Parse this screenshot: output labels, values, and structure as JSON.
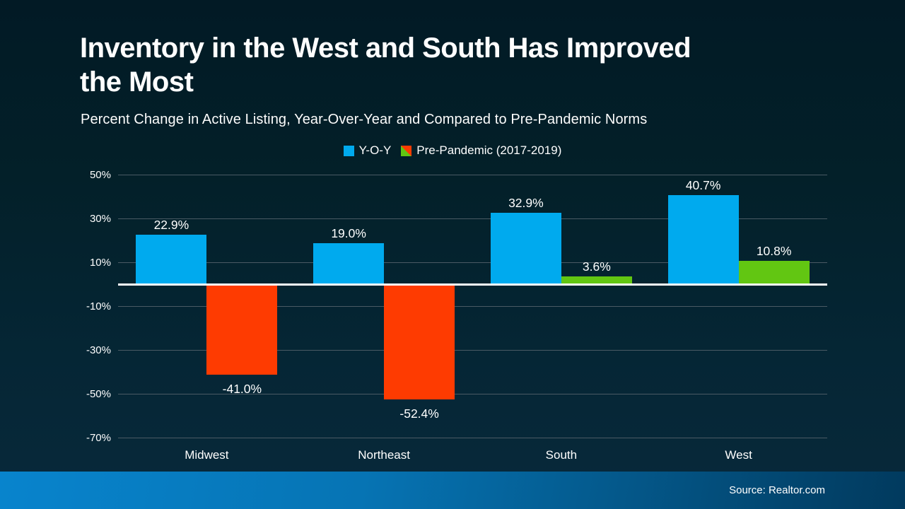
{
  "slide": {
    "title_line1": "Inventory in the West and South Has Improved",
    "title_line2": "the Most",
    "subtitle": "Percent Change in Active Listing, Year-Over-Year and Compared to Pre-Pandemic Norms",
    "footer_source": "Source: Realtor.com"
  },
  "legend": [
    {
      "label": "Y-O-Y",
      "swatch": "yoy-swatch"
    },
    {
      "label": "Pre-Pandemic (2017-2019)",
      "swatch": "prepandemic-swatch"
    }
  ],
  "colors": {
    "yoy_blue": "#00aaee",
    "prepandemic_negative_orange": "#fe3b01",
    "prepandemic_positive_green": "#62c612",
    "gridline_gray": "#4a5a64",
    "zero_line_white": "#ffffff",
    "background_top": "#021a25",
    "background_bottom": "#08293b",
    "footer_left_blue": "#0884cd",
    "footer_right_blue": "#013a5e"
  },
  "chart_data": {
    "type": "bar",
    "title": "Inventory in the West and South Has Improved the Most",
    "subtitle": "Percent Change in Active Listing, Year-Over-Year and Compared to Pre-Pandemic Norms",
    "categories": [
      "Midwest",
      "Northeast",
      "South",
      "West"
    ],
    "series": [
      {
        "name": "Y-O-Y",
        "values": [
          22.9,
          19.0,
          32.9,
          40.7
        ]
      },
      {
        "name": "Pre-Pandemic (2017-2019)",
        "values": [
          -41.0,
          -52.4,
          3.6,
          10.8
        ]
      }
    ],
    "value_labels": [
      [
        "22.9%",
        "-41.0%"
      ],
      [
        "19.0%",
        "-52.4%"
      ],
      [
        "32.9%",
        "3.6%"
      ],
      [
        "40.7%",
        "10.8%"
      ]
    ],
    "y_ticks": [
      {
        "label": "50%",
        "value": 50
      },
      {
        "label": "30%",
        "value": 30
      },
      {
        "label": "10%",
        "value": 10
      },
      {
        "label": "-10%",
        "value": -10
      },
      {
        "label": "-30%",
        "value": -30
      },
      {
        "label": "-50%",
        "value": -50
      },
      {
        "label": "-70%",
        "value": -70
      }
    ],
    "ylim": [
      -70,
      50
    ],
    "grid": true,
    "legend_position": "top-center",
    "source": "Source: Realtor.com"
  }
}
